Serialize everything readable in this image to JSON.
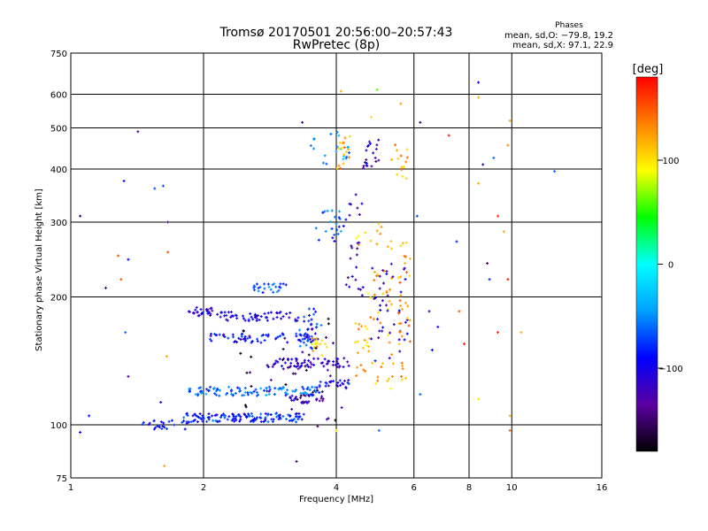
{
  "chart_data": {
    "type": "scatter",
    "title": "Tromsø 20170501 20:56:00–20:57:43",
    "subtitle": "RwPretec (8p)",
    "xlabel": "Frequency [MHz]",
    "ylabel": "Stationary phase Virtual Height [km]",
    "x_scale": "log",
    "y_scale": "log",
    "xlim": [
      1,
      16
    ],
    "ylim": [
      75,
      750
    ],
    "x_ticks": [
      1,
      2,
      4,
      6,
      8,
      10,
      16
    ],
    "x_tick_labels": [
      "1",
      "2",
      "4",
      "6",
      "8",
      "10",
      "16"
    ],
    "y_ticks": [
      75,
      100,
      200,
      300,
      400,
      500,
      600,
      750
    ],
    "y_tick_labels": [
      "75",
      "100",
      "200",
      "300",
      "400",
      "500",
      "600",
      "750"
    ],
    "grid": true,
    "info": {
      "heading": "Phases",
      "line_o": "mean, sd,O: −79.8, 19.2",
      "line_x": "mean, sd,X:  97.1, 22.9"
    },
    "colorbar": {
      "label": "[deg]",
      "range": [
        -180,
        180
      ],
      "ticks": [
        100,
        0,
        -100
      ],
      "tick_labels": [
        "100",
        "0",
        "−100"
      ],
      "colormap": [
        "#000000",
        "#5a00a0",
        "#0000ff",
        "#00a0ff",
        "#00ffff",
        "#00ff00",
        "#ffff00",
        "#ff8000",
        "#ff0000"
      ]
    },
    "traces": [
      {
        "x": [
          1.8,
          3.4
        ],
        "y": 104,
        "n": 130,
        "phase": -80
      },
      {
        "x": [
          1.45,
          1.85
        ],
        "y": 100,
        "n": 25,
        "phase": -85
      },
      {
        "x": [
          1.85,
          3.7
        ],
        "y": 120,
        "n": 100,
        "phase": -60
      },
      {
        "x": [
          1.85,
          2.1
        ],
        "y": 185,
        "n": 25,
        "phase": -110
      },
      {
        "x": [
          2.15,
          3.3
        ],
        "y": 180,
        "n": 55,
        "phase": -100
      },
      {
        "x": [
          2.05,
          3.6
        ],
        "y": 160,
        "n": 70,
        "phase": -90
      },
      {
        "x": [
          2.8,
          4.3
        ],
        "y": 140,
        "n": 60,
        "phase": -110
      },
      {
        "x": [
          2.6,
          3.1
        ],
        "y": 210,
        "n": 25,
        "phase": -70
      },
      {
        "x": [
          3.05,
          3.75
        ],
        "y": 115,
        "n": 30,
        "phase": -120
      },
      {
        "x": [
          3.6,
          4.3
        ],
        "y": 125,
        "n": 25,
        "phase": -95
      }
    ],
    "clusters": [
      {
        "x": [
          3.3,
          3.7
        ],
        "y": [
          150,
          190
        ],
        "n": 30,
        "phase": -80
      },
      {
        "x": [
          3.5,
          3.9
        ],
        "y": [
          145,
          160
        ],
        "n": 15,
        "phase": 110
      },
      {
        "x": [
          3.6,
          4.2
        ],
        "y": [
          260,
          320
        ],
        "n": 22,
        "phase": -70
      },
      {
        "x": [
          3.5,
          4.3
        ],
        "y": [
          410,
          500
        ],
        "n": 20,
        "phase": -40
      },
      {
        "x": [
          4.0,
          4.3
        ],
        "y": [
          400,
          480
        ],
        "n": 16,
        "phase": 120
      },
      {
        "x": [
          4.6,
          5.0
        ],
        "y": [
          400,
          480
        ],
        "n": 20,
        "phase": -120
      },
      {
        "x": [
          4.2,
          4.6
        ],
        "y": [
          200,
          360
        ],
        "n": 25,
        "phase": -120
      },
      {
        "x": [
          4.4,
          5.4
        ],
        "y": [
          120,
          300
        ],
        "n": 70,
        "phase": 115
      },
      {
        "x": [
          4.8,
          5.8
        ],
        "y": [
          140,
          250
        ],
        "n": 40,
        "phase": -110
      },
      {
        "x": [
          5.3,
          5.8
        ],
        "y": [
          380,
          460
        ],
        "n": 14,
        "phase": 120
      },
      {
        "x": [
          5.5,
          5.9
        ],
        "y": [
          125,
          270
        ],
        "n": 35,
        "phase": 130
      },
      {
        "x": [
          2.4,
          4.2
        ],
        "y": [
          95,
          180
        ],
        "n": 55,
        "phase": -150
      }
    ],
    "points": [
      {
        "x": 1.05,
        "y": 96,
        "phase": -100
      },
      {
        "x": 1.1,
        "y": 105,
        "phase": -90
      },
      {
        "x": 1.05,
        "y": 310,
        "phase": -150
      },
      {
        "x": 1.2,
        "y": 210,
        "phase": -150
      },
      {
        "x": 1.28,
        "y": 250,
        "phase": 150
      },
      {
        "x": 1.3,
        "y": 220,
        "phase": 150
      },
      {
        "x": 1.32,
        "y": 375,
        "phase": -90
      },
      {
        "x": 1.33,
        "y": 165,
        "phase": -60
      },
      {
        "x": 1.35,
        "y": 245,
        "phase": -90
      },
      {
        "x": 1.42,
        "y": 490,
        "phase": -130
      },
      {
        "x": 1.55,
        "y": 360,
        "phase": -70
      },
      {
        "x": 1.62,
        "y": 365,
        "phase": -70
      },
      {
        "x": 1.66,
        "y": 300,
        "phase": -140
      },
      {
        "x": 1.66,
        "y": 255,
        "phase": 150
      },
      {
        "x": 1.65,
        "y": 145,
        "phase": 120
      },
      {
        "x": 1.63,
        "y": 80,
        "phase": 120
      },
      {
        "x": 1.35,
        "y": 130,
        "phase": -130
      },
      {
        "x": 1.6,
        "y": 113,
        "phase": -100
      },
      {
        "x": 3.35,
        "y": 515,
        "phase": -140
      },
      {
        "x": 3.25,
        "y": 82,
        "phase": -150
      },
      {
        "x": 4.1,
        "y": 610,
        "phase": 120
      },
      {
        "x": 4.95,
        "y": 615,
        "phase": 60
      },
      {
        "x": 4.8,
        "y": 530,
        "phase": 100
      },
      {
        "x": 5.6,
        "y": 570,
        "phase": 120
      },
      {
        "x": 6.2,
        "y": 515,
        "phase": -150
      },
      {
        "x": 7.2,
        "y": 480,
        "phase": 170
      },
      {
        "x": 8.4,
        "y": 640,
        "phase": -100
      },
      {
        "x": 8.4,
        "y": 590,
        "phase": 120
      },
      {
        "x": 9.9,
        "y": 520,
        "phase": 120
      },
      {
        "x": 9.8,
        "y": 455,
        "phase": 130
      },
      {
        "x": 9.1,
        "y": 425,
        "phase": -60
      },
      {
        "x": 8.6,
        "y": 410,
        "phase": -120
      },
      {
        "x": 8.4,
        "y": 370,
        "phase": 120
      },
      {
        "x": 9.3,
        "y": 310,
        "phase": 160
      },
      {
        "x": 9.6,
        "y": 285,
        "phase": 120
      },
      {
        "x": 12.5,
        "y": 395,
        "phase": -60
      },
      {
        "x": 6.1,
        "y": 310,
        "phase": -70
      },
      {
        "x": 7.5,
        "y": 270,
        "phase": -80
      },
      {
        "x": 8.8,
        "y": 240,
        "phase": -150
      },
      {
        "x": 8.9,
        "y": 220,
        "phase": -80
      },
      {
        "x": 9.8,
        "y": 220,
        "phase": 170
      },
      {
        "x": 6.5,
        "y": 185,
        "phase": -130
      },
      {
        "x": 6.8,
        "y": 170,
        "phase": -100
      },
      {
        "x": 7.6,
        "y": 185,
        "phase": 150
      },
      {
        "x": 7.8,
        "y": 155,
        "phase": 170
      },
      {
        "x": 9.3,
        "y": 165,
        "phase": 170
      },
      {
        "x": 10.5,
        "y": 165,
        "phase": 120
      },
      {
        "x": 8.4,
        "y": 115,
        "phase": 100
      },
      {
        "x": 9.9,
        "y": 105,
        "phase": 120
      },
      {
        "x": 9.9,
        "y": 97,
        "phase": 150
      },
      {
        "x": 6.2,
        "y": 118,
        "phase": -60
      },
      {
        "x": 6.6,
        "y": 150,
        "phase": -90
      },
      {
        "x": 5.0,
        "y": 97,
        "phase": -60
      },
      {
        "x": 4.0,
        "y": 97,
        "phase": 100
      }
    ]
  }
}
